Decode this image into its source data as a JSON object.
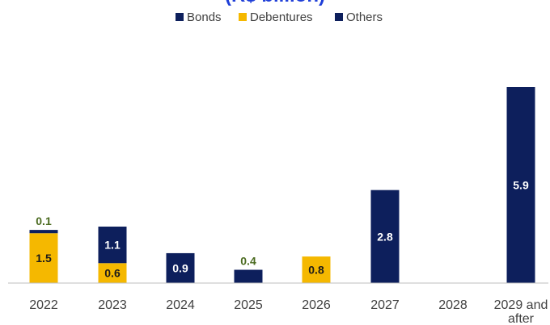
{
  "colors": {
    "bonds": "#0d1f5c",
    "debentures": "#f5b800",
    "others": "#0d1f5c",
    "axis": "#bfbfbf",
    "label_dark": "#4a6a1f"
  },
  "title_partial": "(R$ billion)",
  "chart_data": {
    "type": "bar",
    "stacked": true,
    "title": "",
    "categories": [
      "2022",
      "2023",
      "2024",
      "2025",
      "2026",
      "2027",
      "2028",
      "2029 and after"
    ],
    "series": [
      {
        "name": "Bonds",
        "values": [
          0.1,
          1.1,
          0.9,
          0.4,
          0,
          2.8,
          0,
          5.9
        ]
      },
      {
        "name": "Debentures",
        "values": [
          1.5,
          0.6,
          0,
          0,
          0.8,
          0,
          0,
          0
        ]
      },
      {
        "name": "Others",
        "values": [
          0,
          0,
          0,
          0,
          0,
          0,
          0,
          0
        ]
      }
    ],
    "data_labels": [
      "0.1",
      "1.5",
      "1.1",
      "0.6",
      "0.9",
      "0.4",
      "0.8",
      "2.8",
      "5.9"
    ],
    "ylim": [
      0,
      5.9
    ],
    "legend": "top-center",
    "grid": false
  }
}
